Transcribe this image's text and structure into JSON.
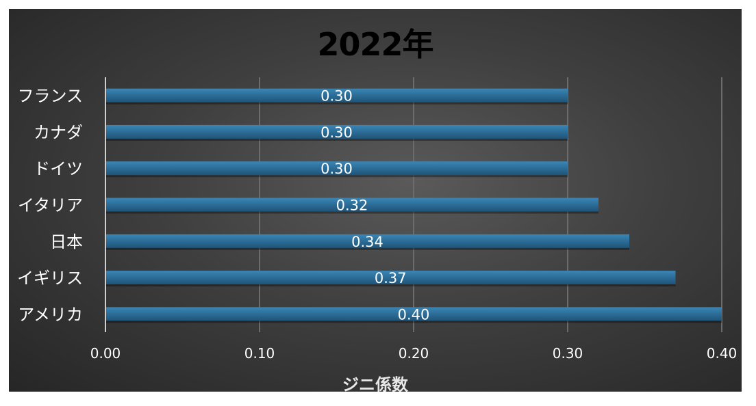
{
  "chart_data": {
    "type": "bar",
    "orientation": "horizontal",
    "title": "2022年",
    "xlabel": "ジニ係数",
    "ylabel": "",
    "categories": [
      "フランス",
      "カナダ",
      "ドイツ",
      "イタリア",
      "日本",
      "イギリス",
      "アメリカ"
    ],
    "values": [
      0.3,
      0.3,
      0.3,
      0.32,
      0.34,
      0.37,
      0.4
    ],
    "value_labels": [
      "0.30",
      "0.30",
      "0.30",
      "0.32",
      "0.34",
      "0.37",
      "0.40"
    ],
    "xlim": [
      0,
      0.4
    ],
    "x_ticks": [
      "0.00",
      "0.10",
      "0.20",
      "0.30",
      "0.40"
    ],
    "grid": true,
    "legend": "none",
    "colors": {
      "bar": "#2a6a94",
      "bar_highlight": "#3b86b6",
      "grid": "#6c6c6c",
      "axis": "#d0d0d0",
      "tick_text": "#ffffff",
      "category_text": "#ffffff",
      "value_label_text": "#ffffff",
      "title_text": "#000000"
    }
  }
}
